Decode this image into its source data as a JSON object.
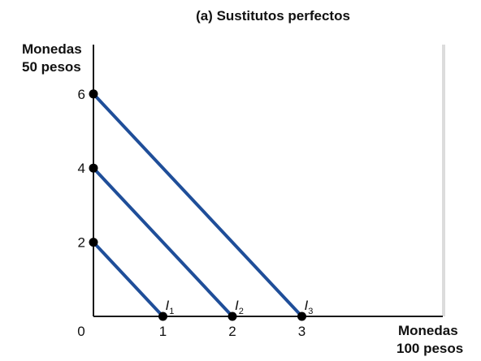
{
  "chart_data": {
    "type": "line",
    "title": "(a) Sustitutos perfectos",
    "xlabel": [
      "Monedas",
      "100 pesos"
    ],
    "ylabel": [
      "Monedas",
      "50 pesos"
    ],
    "origin_label": "0",
    "xlim": [
      0,
      5
    ],
    "ylim": [
      0,
      7
    ],
    "x_ticks": [
      1,
      2,
      3
    ],
    "y_ticks": [
      2,
      4,
      6
    ],
    "grid": false,
    "series": [
      {
        "name": "I1",
        "label_main": "I",
        "label_sub": "1",
        "x": [
          0,
          1
        ],
        "y": [
          2,
          0
        ]
      },
      {
        "name": "I2",
        "label_main": "I",
        "label_sub": "2",
        "x": [
          0,
          2
        ],
        "y": [
          4,
          0
        ]
      },
      {
        "name": "I3",
        "label_main": "I",
        "label_sub": "3",
        "x": [
          0,
          3
        ],
        "y": [
          6,
          0
        ]
      }
    ],
    "colors": {
      "line": "#1f4e99",
      "point": "#000000",
      "axis": "#1a1a1a",
      "right_edge": "#dcdcdc"
    }
  }
}
